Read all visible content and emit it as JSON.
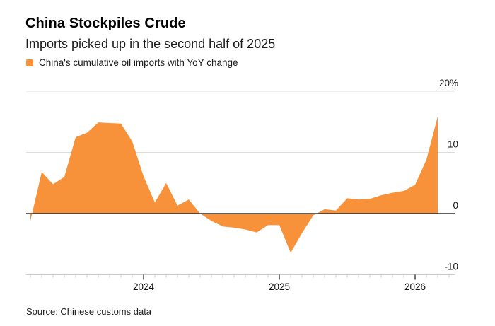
{
  "header": {
    "title": "China Stockpiles Crude",
    "subtitle": "Imports picked up in the second half of 2025"
  },
  "legend": {
    "swatch_color": "#F7923B",
    "label": "China's cumulative oil imports with YoY change"
  },
  "source": "Source: Chinese customs data",
  "chart_data": {
    "type": "area",
    "title": "China Stockpiles Crude",
    "series_name": "China's cumulative oil imports with YoY change",
    "unit": "%",
    "grid": true,
    "legend_position": "top-left",
    "ylim": [
      -10,
      20
    ],
    "x": [
      "2023-03",
      "2023-04",
      "2023-05",
      "2023-06",
      "2023-07",
      "2023-08",
      "2023-09",
      "2023-10",
      "2023-11",
      "2023-12",
      "2024-01",
      "2024-02",
      "2024-03",
      "2024-04",
      "2024-05",
      "2024-06",
      "2024-07",
      "2024-08",
      "2024-09",
      "2024-10",
      "2024-11",
      "2024-12",
      "2025-01",
      "2025-02",
      "2025-03",
      "2025-04",
      "2025-05",
      "2025-06",
      "2025-07",
      "2025-08",
      "2025-09",
      "2025-10",
      "2025-11",
      "2025-12",
      "2026-01",
      "2026-02",
      "2026-03"
    ],
    "values": [
      -1.2,
      6.8,
      4.8,
      6.0,
      12.5,
      13.2,
      14.9,
      14.8,
      14.7,
      11.8,
      6.1,
      1.8,
      5.0,
      1.3,
      2.3,
      0.0,
      -1.2,
      -2.1,
      -2.3,
      -2.6,
      -3.1,
      -1.9,
      -1.9,
      -6.4,
      -3.2,
      -0.3,
      0.7,
      0.5,
      2.5,
      2.3,
      2.4,
      3.0,
      3.4,
      3.7,
      4.7,
      8.8,
      15.9
    ],
    "yticks": [
      {
        "value": 20,
        "label": "20%"
      },
      {
        "value": 10,
        "label": "10"
      },
      {
        "value": 0,
        "label": "0"
      },
      {
        "value": -10,
        "label": "-10"
      }
    ],
    "xticks": [
      {
        "label": "2024",
        "month": "2024-01"
      },
      {
        "label": "2025",
        "month": "2025-01"
      },
      {
        "label": "2026",
        "month": "2026-01"
      }
    ],
    "colors": {
      "area": "#F7923B",
      "zero_line": "#2b2b2b",
      "grid": "#dcdcdc",
      "axis_line": "#cccccc",
      "tick_minor": "#c9c9c9",
      "tick_major": "#333333",
      "text": "#111111"
    }
  }
}
